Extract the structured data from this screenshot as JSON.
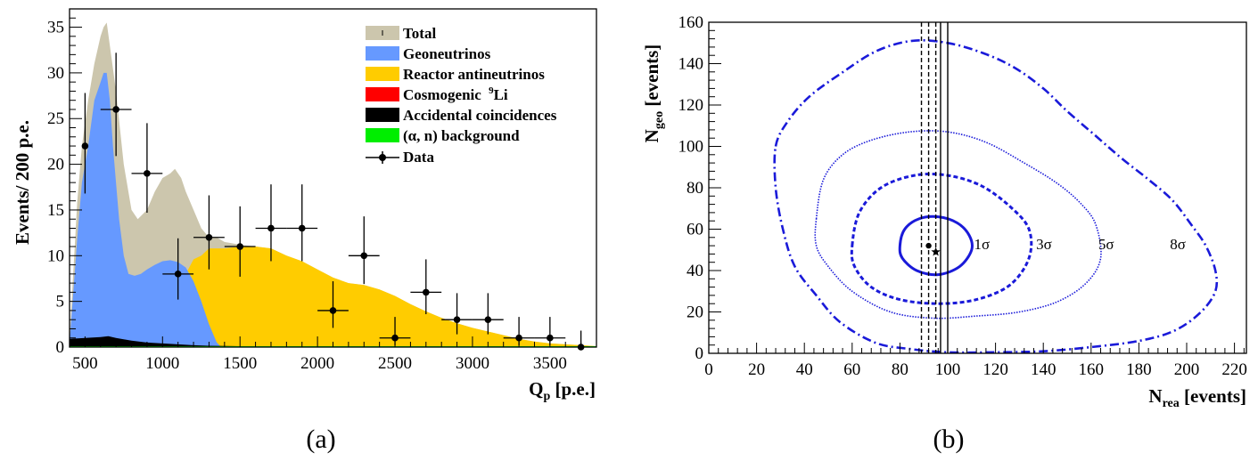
{
  "chart_data": [
    {
      "type": "histogram",
      "panel_label": "(a)",
      "xlabel": "Q",
      "xlabel_sub": "p",
      "xlabel_unit": " [p.e.]",
      "ylabel": "Events/  200 p.e.",
      "xlim": [
        400,
        3800
      ],
      "ylim": [
        0,
        37
      ],
      "xticks": [
        500,
        1000,
        1500,
        2000,
        2500,
        3000,
        3500
      ],
      "yticks": [
        0,
        5,
        10,
        15,
        20,
        25,
        30,
        35
      ],
      "legend": [
        {
          "label": "Total",
          "color": "#ccc6ad",
          "kind": "fill"
        },
        {
          "label": "Geoneutrinos",
          "color": "#6699ff",
          "kind": "fill"
        },
        {
          "label": "Reactor antineutrinos",
          "color": "#ffcc00",
          "kind": "fill"
        },
        {
          "label": "Cosmogenic ",
          "sup": "9",
          "label_tail": "Li",
          "color": "#ff0000",
          "kind": "fill"
        },
        {
          "label": "Accidental coincidences",
          "color": "#000000",
          "kind": "fill"
        },
        {
          "label": "(α, n) background",
          "color": "#00ee00",
          "kind": "fill"
        },
        {
          "label": "Data",
          "color": "#000000",
          "kind": "marker"
        }
      ],
      "curves": {
        "total": [
          [
            400,
            0.5
          ],
          [
            420,
            7
          ],
          [
            450,
            16
          ],
          [
            480,
            22
          ],
          [
            520,
            27
          ],
          [
            560,
            31
          ],
          [
            600,
            34
          ],
          [
            620,
            35
          ],
          [
            640,
            35.5
          ],
          [
            660,
            33
          ],
          [
            700,
            28
          ],
          [
            750,
            20
          ],
          [
            800,
            15
          ],
          [
            840,
            14
          ],
          [
            900,
            15
          ],
          [
            950,
            17
          ],
          [
            1000,
            18.5
          ],
          [
            1050,
            19
          ],
          [
            1080,
            19.5
          ],
          [
            1120,
            18.5
          ],
          [
            1150,
            17
          ],
          [
            1200,
            15
          ],
          [
            1250,
            13
          ],
          [
            1300,
            12
          ],
          [
            1350,
            12
          ],
          [
            1400,
            11.5
          ],
          [
            1500,
            11.2
          ],
          [
            1600,
            11
          ],
          [
            1700,
            10.8
          ],
          [
            1800,
            10
          ],
          [
            1900,
            9.4
          ],
          [
            2000,
            8.5
          ],
          [
            2100,
            7.6
          ],
          [
            2200,
            7
          ],
          [
            2300,
            6.8
          ],
          [
            2400,
            6.3
          ],
          [
            2500,
            5.6
          ],
          [
            2600,
            4.7
          ],
          [
            2700,
            3.9
          ],
          [
            2800,
            3.2
          ],
          [
            2900,
            2.6
          ],
          [
            3000,
            2.1
          ],
          [
            3100,
            1.7
          ],
          [
            3200,
            1.3
          ],
          [
            3300,
            0.9
          ],
          [
            3400,
            0.6
          ],
          [
            3500,
            0.4
          ],
          [
            3600,
            0.3
          ],
          [
            3700,
            0.2
          ],
          [
            3800,
            0.1
          ]
        ],
        "geoneutrinos": [
          [
            400,
            0.5
          ],
          [
            420,
            5
          ],
          [
            450,
            12
          ],
          [
            480,
            18
          ],
          [
            520,
            22
          ],
          [
            560,
            27
          ],
          [
            600,
            29
          ],
          [
            620,
            30
          ],
          [
            640,
            30
          ],
          [
            660,
            27
          ],
          [
            680,
            22
          ],
          [
            700,
            18
          ],
          [
            720,
            14
          ],
          [
            750,
            10
          ],
          [
            780,
            8
          ],
          [
            820,
            7.8
          ],
          [
            860,
            8
          ],
          [
            900,
            8.5
          ],
          [
            950,
            9
          ],
          [
            1000,
            9.4
          ],
          [
            1050,
            9.5
          ],
          [
            1100,
            9.3
          ],
          [
            1150,
            8.7
          ],
          [
            1200,
            7.2
          ],
          [
            1250,
            5
          ],
          [
            1300,
            2.5
          ],
          [
            1350,
            0.5
          ],
          [
            1380,
            0
          ]
        ],
        "reactor": [
          [
            1050,
            0
          ],
          [
            1100,
            5
          ],
          [
            1150,
            8
          ],
          [
            1200,
            9.6
          ],
          [
            1250,
            10
          ],
          [
            1300,
            10.8
          ],
          [
            1400,
            10.8
          ],
          [
            1500,
            11
          ],
          [
            1600,
            11
          ],
          [
            1700,
            10.8
          ],
          [
            1800,
            10
          ],
          [
            1900,
            9.4
          ],
          [
            2000,
            8.5
          ],
          [
            2100,
            7.6
          ],
          [
            2200,
            7
          ],
          [
            2300,
            6.8
          ],
          [
            2400,
            6.3
          ],
          [
            2500,
            5.6
          ],
          [
            2600,
            4.7
          ],
          [
            2700,
            3.9
          ],
          [
            2800,
            3.2
          ],
          [
            2900,
            2.6
          ],
          [
            3000,
            2.1
          ],
          [
            3100,
            1.7
          ],
          [
            3200,
            1.3
          ],
          [
            3300,
            0.9
          ],
          [
            3400,
            0.6
          ],
          [
            3500,
            0.4
          ],
          [
            3600,
            0.3
          ],
          [
            3700,
            0.2
          ],
          [
            3800,
            0.1
          ]
        ],
        "accidental": [
          [
            400,
            0.9
          ],
          [
            500,
            1.0
          ],
          [
            600,
            1.1
          ],
          [
            650,
            1.2
          ],
          [
            700,
            1.0
          ],
          [
            800,
            0.7
          ],
          [
            900,
            0.5
          ],
          [
            1000,
            0.4
          ],
          [
            1100,
            0.3
          ],
          [
            1200,
            0.2
          ],
          [
            1300,
            0.15
          ],
          [
            1500,
            0.1
          ],
          [
            2000,
            0.05
          ],
          [
            3800,
            0.05
          ]
        ],
        "cosmogenic": [
          [
            400,
            0.1
          ],
          [
            3800,
            0.1
          ]
        ],
        "alpha_n": [
          [
            400,
            0.1
          ],
          [
            3800,
            0.1
          ]
        ]
      },
      "data_points": [
        {
          "x": 500,
          "y": 22,
          "yerr": [
            5.8,
            5.2
          ],
          "xerr": 0
        },
        {
          "x": 700,
          "y": 26,
          "yerr": [
            6.2,
            5.1
          ],
          "xerr": 100
        },
        {
          "x": 900,
          "y": 19,
          "yerr": [
            5.5,
            4.3
          ],
          "xerr": 100
        },
        {
          "x": 1100,
          "y": 8,
          "yerr": [
            3.9,
            2.8
          ],
          "xerr": 100
        },
        {
          "x": 1300,
          "y": 12,
          "yerr": [
            4.6,
            3.5
          ],
          "xerr": 100
        },
        {
          "x": 1500,
          "y": 11,
          "yerr": [
            4.4,
            3.3
          ],
          "xerr": 100
        },
        {
          "x": 1700,
          "y": 13,
          "yerr": [
            4.8,
            3.6
          ],
          "xerr": 100
        },
        {
          "x": 1900,
          "y": 13,
          "yerr": [
            4.8,
            3.6
          ],
          "xerr": 100
        },
        {
          "x": 2100,
          "y": 4,
          "yerr": [
            3.2,
            1.9
          ],
          "xerr": 100
        },
        {
          "x": 2300,
          "y": 10,
          "yerr": [
            4.3,
            3.1
          ],
          "xerr": 100
        },
        {
          "x": 2500,
          "y": 1,
          "yerr": [
            2.3,
            0.8
          ],
          "xerr": 100
        },
        {
          "x": 2700,
          "y": 6,
          "yerr": [
            3.6,
            2.4
          ],
          "xerr": 100
        },
        {
          "x": 2900,
          "y": 3,
          "yerr": [
            2.9,
            1.6
          ],
          "xerr": 100
        },
        {
          "x": 3100,
          "y": 3,
          "yerr": [
            2.9,
            1.6
          ],
          "xerr": 100
        },
        {
          "x": 3300,
          "y": 1,
          "yerr": [
            2.3,
            0.8
          ],
          "xerr": 100
        },
        {
          "x": 3500,
          "y": 1,
          "yerr": [
            2.3,
            0.8
          ],
          "xerr": 100
        },
        {
          "x": 3700,
          "y": 0,
          "yerr": [
            1.8,
            0
          ],
          "xerr": 0
        }
      ]
    },
    {
      "type": "contour",
      "panel_label": "(b)",
      "xlabel": "N",
      "xlabel_sub": "rea",
      "xlabel_unit": " [events]",
      "ylabel": "N",
      "ylabel_sub": "geo",
      "ylabel_unit": " [events]",
      "xlim": [
        0,
        225
      ],
      "ylim": [
        0,
        160
      ],
      "xticks": [
        0,
        20,
        40,
        60,
        80,
        100,
        120,
        140,
        160,
        180,
        200,
        220
      ],
      "yticks": [
        0,
        20,
        40,
        60,
        80,
        100,
        120,
        140,
        160
      ],
      "best_fit": {
        "x": 92,
        "y": 52
      },
      "star": {
        "x": 95,
        "y": 49
      },
      "vertical_lines": [
        {
          "x": 89,
          "style": "dashed"
        },
        {
          "x": 92,
          "style": "dashed"
        },
        {
          "x": 95,
          "style": "dashed"
        },
        {
          "x": 97,
          "style": "solid"
        },
        {
          "x": 100,
          "style": "solid"
        }
      ],
      "contours": [
        {
          "label": "1σ",
          "style": "solid",
          "label_pos": [
            111,
            53
          ],
          "points": [
            [
              80,
              52
            ],
            [
              82,
              60
            ],
            [
              88,
              65
            ],
            [
              96,
              66
            ],
            [
              104,
              63
            ],
            [
              109,
              57
            ],
            [
              110,
              50
            ],
            [
              105,
              42
            ],
            [
              96,
              38
            ],
            [
              87,
              40
            ],
            [
              81,
              46
            ],
            [
              80,
              52
            ]
          ]
        },
        {
          "label": "3σ",
          "style": "dashed",
          "label_pos": [
            137,
            53
          ],
          "points": [
            [
              60,
              52
            ],
            [
              63,
              68
            ],
            [
              72,
              80
            ],
            [
              86,
              86
            ],
            [
              100,
              86
            ],
            [
              114,
              81
            ],
            [
              126,
              71
            ],
            [
              134,
              60
            ],
            [
              134,
              46
            ],
            [
              126,
              33
            ],
            [
              112,
              26
            ],
            [
              96,
              24
            ],
            [
              80,
              26
            ],
            [
              68,
              32
            ],
            [
              61,
              42
            ],
            [
              60,
              52
            ]
          ]
        },
        {
          "label": "5σ",
          "style": "dotted",
          "label_pos": [
            163,
            53
          ],
          "points": [
            [
              45,
              65
            ],
            [
              48,
              84
            ],
            [
              56,
              96
            ],
            [
              68,
              103
            ],
            [
              84,
              107
            ],
            [
              100,
              107
            ],
            [
              116,
              102
            ],
            [
              132,
              92
            ],
            [
              146,
              82
            ],
            [
              156,
              72
            ],
            [
              162,
              62
            ],
            [
              164,
              46
            ],
            [
              158,
              34
            ],
            [
              146,
              25
            ],
            [
              130,
              20
            ],
            [
              112,
              18
            ],
            [
              94,
              17
            ],
            [
              76,
              20
            ],
            [
              60,
              30
            ],
            [
              50,
              42
            ],
            [
              45,
              52
            ],
            [
              45,
              65
            ]
          ]
        },
        {
          "label": "8σ",
          "style": "dashdot",
          "label_pos": [
            193,
            53
          ],
          "points": [
            [
              28,
              100
            ],
            [
              33,
              112
            ],
            [
              42,
              124
            ],
            [
              55,
              135
            ],
            [
              70,
              146
            ],
            [
              85,
              151
            ],
            [
              100,
              150
            ],
            [
              115,
              145
            ],
            [
              128,
              138
            ],
            [
              140,
              128
            ],
            [
              150,
              117
            ],
            [
              162,
              105
            ],
            [
              173,
              94
            ],
            [
              184,
              84
            ],
            [
              194,
              74
            ],
            [
              202,
              62
            ],
            [
              208,
              52
            ],
            [
              212,
              40
            ],
            [
              212,
              30
            ],
            [
              206,
              20
            ],
            [
              195,
              11
            ],
            [
              180,
              6
            ],
            [
              160,
              3
            ],
            [
              140,
              1
            ],
            [
              120,
              0.5
            ],
            [
              100,
              0.5
            ],
            [
              85,
              2
            ],
            [
              70,
              5
            ],
            [
              55,
              15
            ],
            [
              45,
              28
            ],
            [
              36,
              42
            ],
            [
              31,
              60
            ],
            [
              28,
              80
            ],
            [
              28,
              100
            ]
          ]
        }
      ]
    }
  ]
}
